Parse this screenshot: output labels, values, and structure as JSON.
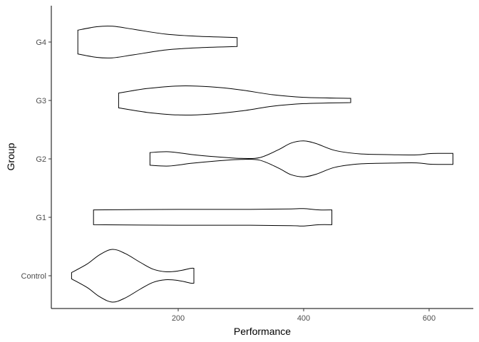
{
  "chart_data": {
    "type": "violin",
    "orientation": "horizontal",
    "xlabel": "Performance",
    "ylabel": "Group",
    "xlim": [
      0,
      672
    ],
    "x_ticks": [
      200,
      400,
      600
    ],
    "categories": [
      "Control",
      "G1",
      "G2",
      "G3",
      "G4"
    ],
    "grid": false,
    "legend": "none",
    "series": [
      {
        "name": "Control",
        "profile": [
          [
            30,
            0.12
          ],
          [
            55,
            0.45
          ],
          [
            75,
            0.8
          ],
          [
            95,
            1.0
          ],
          [
            115,
            0.85
          ],
          [
            140,
            0.5
          ],
          [
            160,
            0.25
          ],
          [
            180,
            0.15
          ],
          [
            200,
            0.18
          ],
          [
            220,
            0.28
          ],
          [
            225,
            0.28
          ]
        ]
      },
      {
        "name": "G1",
        "profile": [
          [
            65,
            0.28
          ],
          [
            200,
            0.3
          ],
          [
            300,
            0.3
          ],
          [
            380,
            0.32
          ],
          [
            400,
            0.33
          ],
          [
            425,
            0.28
          ],
          [
            445,
            0.28
          ]
        ]
      },
      {
        "name": "G2",
        "profile": [
          [
            155,
            0.24
          ],
          [
            185,
            0.27
          ],
          [
            220,
            0.17
          ],
          [
            260,
            0.08
          ],
          [
            300,
            0.02
          ],
          [
            330,
            0.05
          ],
          [
            360,
            0.35
          ],
          [
            380,
            0.6
          ],
          [
            400,
            0.68
          ],
          [
            420,
            0.58
          ],
          [
            450,
            0.32
          ],
          [
            490,
            0.19
          ],
          [
            540,
            0.16
          ],
          [
            580,
            0.15
          ],
          [
            600,
            0.2
          ],
          [
            620,
            0.21
          ],
          [
            638,
            0.21
          ]
        ]
      },
      {
        "name": "G3",
        "profile": [
          [
            105,
            0.28
          ],
          [
            150,
            0.45
          ],
          [
            200,
            0.55
          ],
          [
            250,
            0.52
          ],
          [
            300,
            0.4
          ],
          [
            350,
            0.22
          ],
          [
            400,
            0.12
          ],
          [
            475,
            0.08
          ]
        ]
      },
      {
        "name": "G4",
        "profile": [
          [
            40,
            0.45
          ],
          [
            70,
            0.58
          ],
          [
            95,
            0.6
          ],
          [
            130,
            0.48
          ],
          [
            180,
            0.3
          ],
          [
            230,
            0.22
          ],
          [
            294,
            0.17
          ]
        ]
      }
    ]
  }
}
